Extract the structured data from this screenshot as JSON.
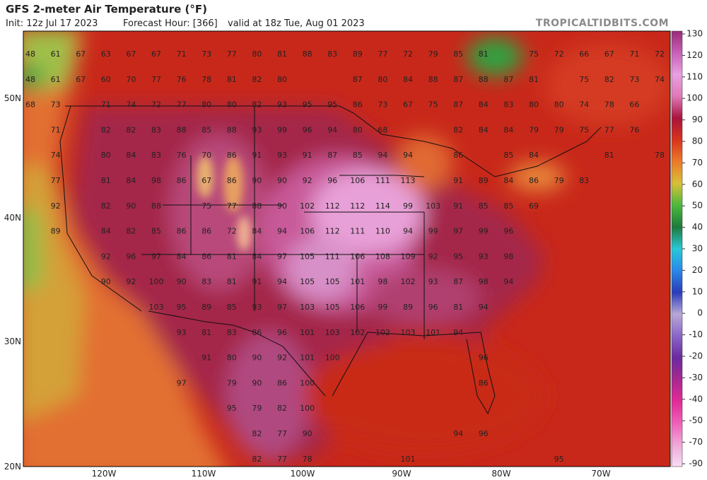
{
  "header": {
    "title": "GFS 2-meter Air Temperature (°F)",
    "init": "Init: 12z Jul 17 2023",
    "forecast_hour": "Forecast Hour: [366]",
    "valid": "valid at 18z Tue, Aug 01 2023",
    "credit": "TROPICALTIDBITS.COM"
  },
  "map": {
    "lat_labels": [
      "50N",
      "40N",
      "30N",
      "20N"
    ],
    "lon_labels": [
      "120W",
      "110W",
      "100W",
      "90W",
      "80W",
      "70W"
    ],
    "values": [
      [
        48,
        61,
        67,
        63,
        67,
        67,
        71,
        73,
        77,
        80,
        81,
        88,
        83,
        89,
        77,
        72,
        79,
        85,
        81,
        null,
        75,
        72,
        66,
        67,
        71,
        72
      ],
      [
        48,
        61,
        67,
        60,
        70,
        77,
        76,
        78,
        81,
        82,
        80,
        null,
        null,
        87,
        80,
        84,
        88,
        87,
        88,
        87,
        81,
        null,
        75,
        82,
        73,
        74
      ],
      [
        68,
        73,
        null,
        71,
        74,
        72,
        77,
        80,
        80,
        82,
        93,
        95,
        95,
        86,
        73,
        67,
        75,
        87,
        84,
        83,
        80,
        80,
        74,
        78,
        66,
        null
      ],
      [
        null,
        71,
        null,
        82,
        82,
        83,
        88,
        85,
        88,
        93,
        99,
        96,
        94,
        80,
        68,
        null,
        null,
        82,
        84,
        84,
        79,
        79,
        75,
        77,
        76,
        null
      ],
      [
        null,
        74,
        null,
        80,
        84,
        83,
        76,
        70,
        86,
        91,
        93,
        91,
        87,
        85,
        94,
        94,
        null,
        86,
        null,
        85,
        84,
        null,
        null,
        81,
        null,
        78
      ],
      [
        null,
        77,
        null,
        81,
        84,
        98,
        86,
        67,
        86,
        90,
        90,
        92,
        96,
        106,
        111,
        113,
        null,
        91,
        89,
        84,
        86,
        79,
        83,
        null,
        null,
        null
      ],
      [
        null,
        92,
        null,
        82,
        90,
        88,
        null,
        75,
        77,
        88,
        90,
        102,
        112,
        112,
        114,
        99,
        103,
        91,
        85,
        85,
        69,
        null,
        null,
        null,
        null,
        null
      ],
      [
        null,
        89,
        null,
        84,
        82,
        85,
        86,
        86,
        72,
        84,
        94,
        106,
        112,
        111,
        110,
        94,
        99,
        97,
        99,
        96,
        null,
        null,
        null,
        null,
        null,
        null
      ],
      [
        null,
        null,
        null,
        92,
        96,
        97,
        84,
        86,
        81,
        84,
        97,
        105,
        111,
        106,
        108,
        109,
        92,
        95,
        93,
        98,
        null,
        null,
        null,
        null,
        null,
        null
      ],
      [
        null,
        null,
        null,
        90,
        92,
        100,
        90,
        83,
        81,
        91,
        94,
        105,
        105,
        101,
        98,
        102,
        93,
        87,
        98,
        94,
        null,
        null,
        null,
        null,
        null,
        null
      ],
      [
        null,
        null,
        null,
        null,
        null,
        103,
        95,
        89,
        85,
        93,
        97,
        103,
        105,
        106,
        99,
        89,
        96,
        81,
        94,
        null,
        null,
        null,
        null,
        null,
        null,
        null
      ],
      [
        null,
        null,
        null,
        null,
        null,
        null,
        93,
        81,
        83,
        86,
        96,
        101,
        103,
        102,
        102,
        103,
        101,
        94,
        null,
        null,
        null,
        null,
        null,
        null,
        null,
        null
      ],
      [
        null,
        null,
        null,
        null,
        null,
        null,
        null,
        91,
        80,
        90,
        92,
        101,
        100,
        null,
        null,
        null,
        null,
        null,
        96,
        null,
        null,
        null,
        null,
        null,
        null,
        null
      ],
      [
        null,
        null,
        null,
        null,
        null,
        null,
        97,
        null,
        79,
        90,
        86,
        100,
        null,
        null,
        null,
        null,
        null,
        null,
        86,
        null,
        null,
        null,
        null,
        null,
        null,
        null
      ],
      [
        null,
        null,
        null,
        null,
        null,
        null,
        null,
        null,
        95,
        79,
        82,
        100,
        null,
        null,
        null,
        null,
        null,
        null,
        null,
        null,
        null,
        null,
        null,
        null,
        null,
        null
      ],
      [
        null,
        null,
        null,
        null,
        null,
        null,
        null,
        null,
        null,
        82,
        77,
        90,
        null,
        null,
        null,
        null,
        null,
        94,
        96,
        null,
        null,
        null,
        null,
        null,
        null,
        null
      ],
      [
        null,
        null,
        null,
        null,
        null,
        null,
        null,
        null,
        null,
        82,
        77,
        78,
        null,
        null,
        null,
        101,
        null,
        null,
        null,
        null,
        null,
        95,
        null,
        null,
        null,
        null
      ]
    ]
  },
  "colorbar": {
    "ticks": [
      130,
      120,
      110,
      100,
      90,
      80,
      70,
      60,
      50,
      40,
      30,
      20,
      10,
      0,
      -10,
      -20,
      -30,
      -40,
      -50,
      -70,
      -90
    ],
    "colors": [
      "#9a2a78",
      "#c860b8",
      "#e8a0e0",
      "#e078b8",
      "#a8143c",
      "#d8341c",
      "#ec7a2a",
      "#d8c038",
      "#4cb83c",
      "#1e7a3c",
      "#28c8d8",
      "#2a88e8",
      "#2a3cb8",
      "#b8a8d8",
      "#8a66c8",
      "#6a2aa0",
      "#a82890",
      "#e02a98",
      "#f060b8",
      "#f0a8d8",
      "#f8dcf4"
    ]
  }
}
